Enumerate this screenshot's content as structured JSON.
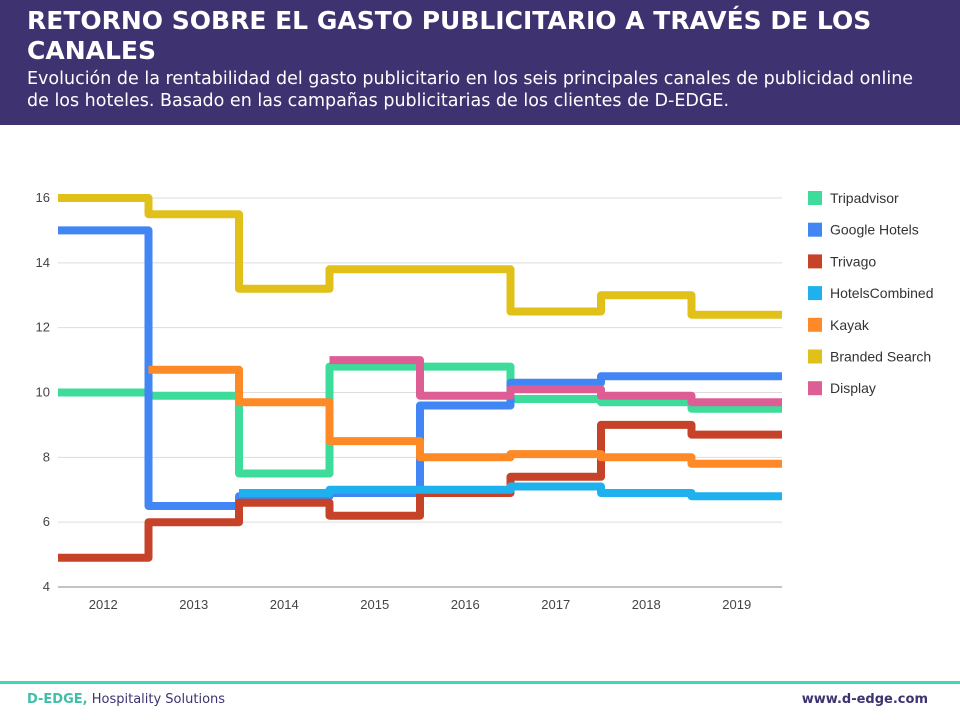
{
  "header": {
    "title": "RETORNO SOBRE EL GASTO PUBLICITARIO A TRAVÉS DE LOS CANALES",
    "subtitle": "Evolución de la rentabilidad del gasto publicitario en los seis principales canales de publicidad online de los hoteles. Basado en las campañas publicitarias de los clientes de D-EDGE."
  },
  "chart_data": {
    "type": "line",
    "step": true,
    "title": "",
    "xlabel": "",
    "ylabel": "",
    "categories": [
      "2012",
      "2013",
      "2014",
      "2015",
      "2016",
      "2017",
      "2018",
      "2019"
    ],
    "ylim": [
      4,
      16
    ],
    "yticks": [
      4,
      6,
      8,
      10,
      12,
      14,
      16
    ],
    "grid": true,
    "legend_position": "right",
    "series": [
      {
        "name": "Tripadvisor",
        "color": "#3ddc9b",
        "values": [
          10,
          9.9,
          7.5,
          10.8,
          10.8,
          9.8,
          9.7,
          9.5
        ]
      },
      {
        "name": "Google Hotels",
        "color": "#4285f4",
        "values": [
          15,
          6.5,
          6.8,
          6.9,
          9.6,
          10.3,
          10.5,
          10.5
        ]
      },
      {
        "name": "Trivago",
        "color": "#c6432a",
        "values": [
          4.9,
          6.0,
          6.6,
          6.2,
          6.9,
          7.4,
          9.0,
          8.7
        ]
      },
      {
        "name": "HotelsCombined",
        "color": "#1fb1ee",
        "values": [
          null,
          null,
          6.9,
          7.0,
          7.0,
          7.1,
          6.9,
          6.8
        ]
      },
      {
        "name": "Kayak",
        "color": "#fd8a26",
        "values": [
          null,
          10.7,
          9.7,
          8.5,
          8.0,
          8.1,
          8.0,
          7.8
        ]
      },
      {
        "name": "Branded Search",
        "color": "#e1c01a",
        "values": [
          16,
          15.5,
          13.2,
          13.8,
          13.8,
          12.5,
          13.0,
          12.4
        ]
      },
      {
        "name": "Display",
        "color": "#dc5e95",
        "values": [
          null,
          null,
          null,
          11.0,
          9.9,
          10.1,
          9.9,
          9.7
        ]
      }
    ]
  },
  "footer": {
    "brand": "D-EDGE,",
    "tagline": " Hospitality Solutions",
    "url": "www.d-edge.com"
  }
}
